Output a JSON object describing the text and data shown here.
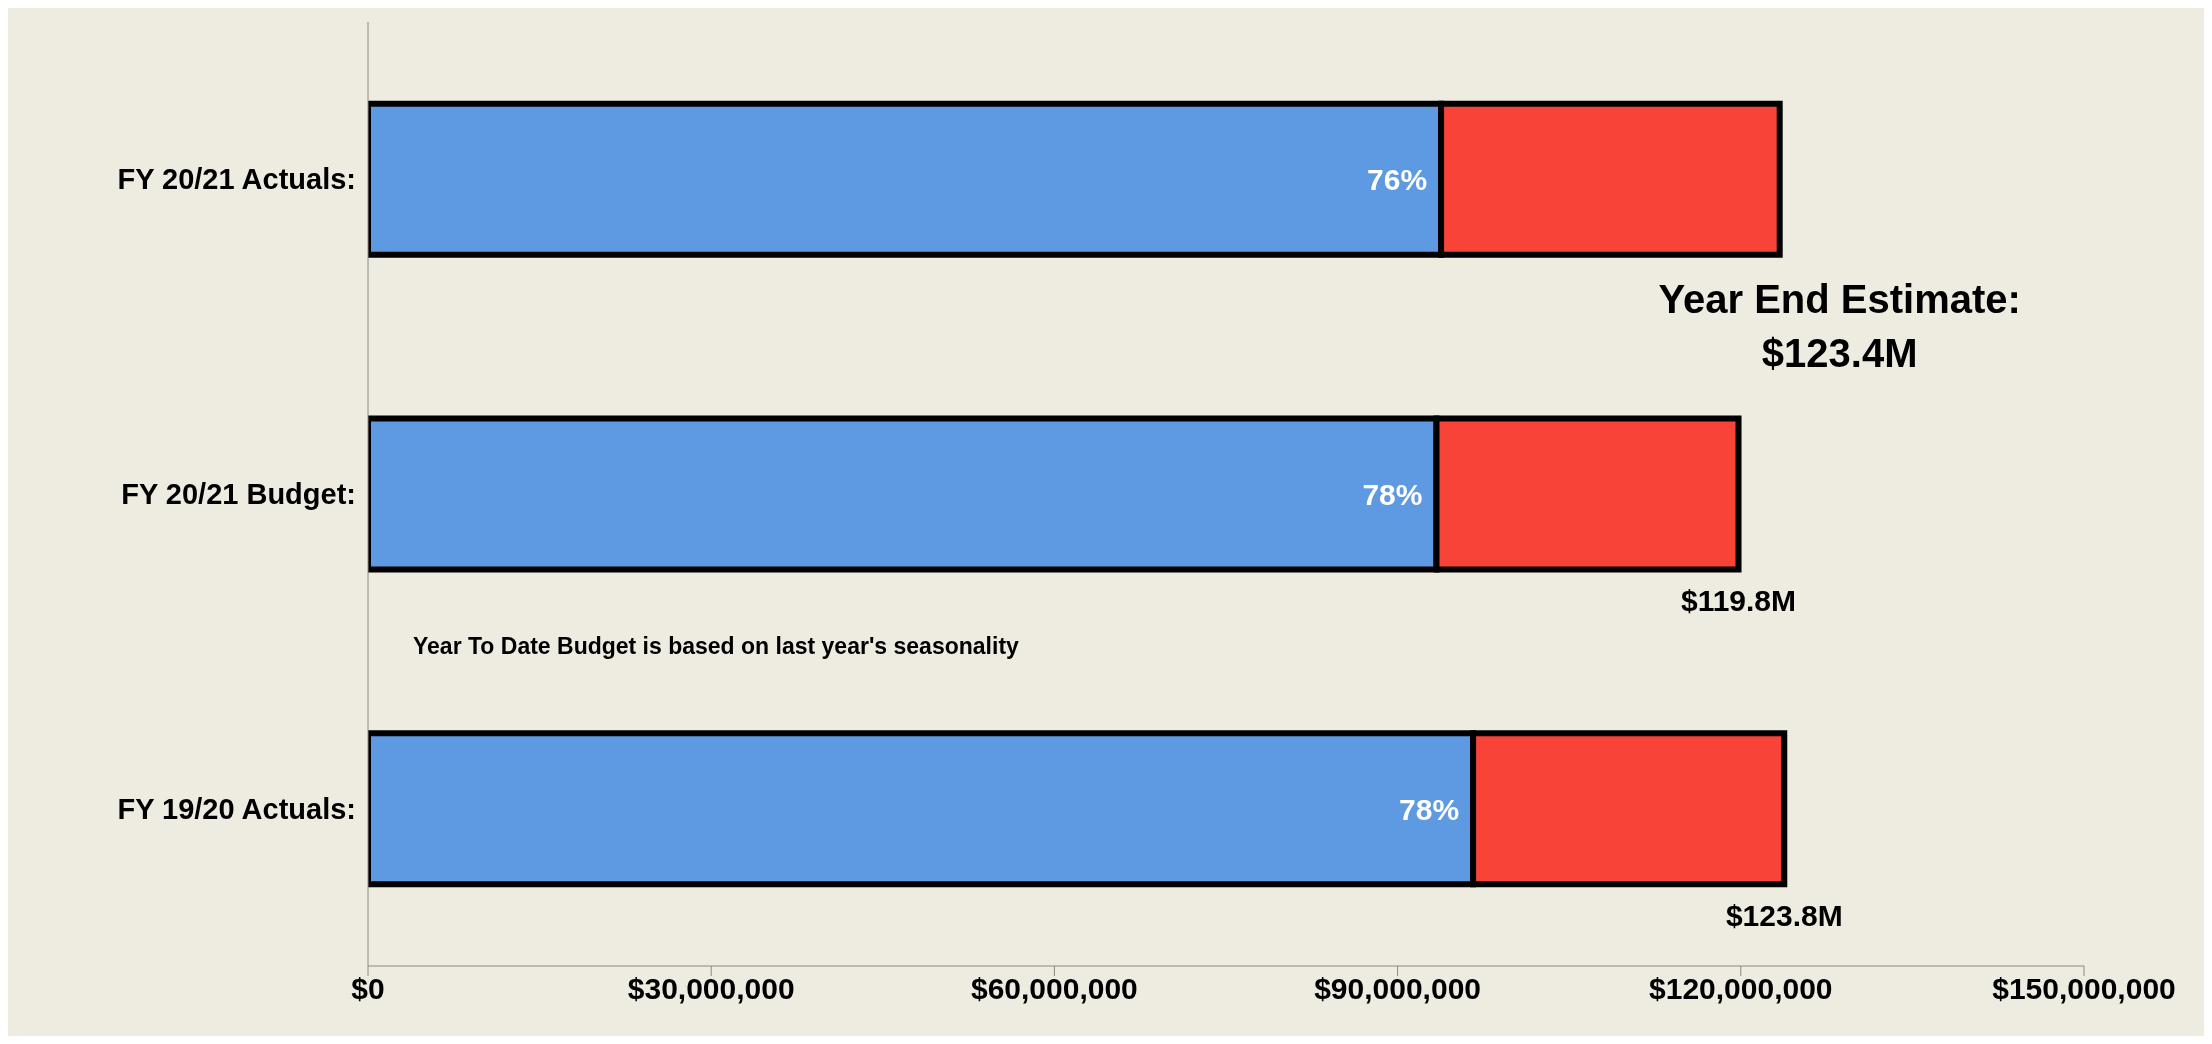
{
  "chart_data": {
    "type": "bar",
    "orientation": "horizontal",
    "stacked": true,
    "categories": [
      "FY 20/21 Actuals",
      "FY 20/21 Budget",
      "FY 19/20 Actuals"
    ],
    "series": [
      {
        "color": "#5e9ae2",
        "values": [
          93800000,
          93400000,
          96600000
        ]
      },
      {
        "color": "#f84438",
        "values": [
          29600000,
          26400000,
          27200000
        ]
      }
    ],
    "totals": [
      "$123.4M",
      "$119.8M",
      "$123.8M"
    ],
    "xlim": [
      0,
      150000000
    ],
    "xticks": [
      {
        "value": 0,
        "label": "$0"
      },
      {
        "value": 30000000,
        "label": "$30,000,000"
      },
      {
        "value": 60000000,
        "label": "$60,000,000"
      },
      {
        "value": 90000000,
        "label": "$90,000,000"
      },
      {
        "value": 120000000,
        "label": "$120,000,000"
      },
      {
        "value": 150000000,
        "label": "$150,000,000"
      }
    ],
    "annotations": [
      {
        "text": "76%",
        "x": 93800000,
        "y": "FY 20/21 Actuals"
      },
      {
        "text": "78%",
        "x": 93400000,
        "y": "FY 20/21 Budget"
      },
      {
        "text": "78%",
        "x": 96600000,
        "y": "FY 19/20 Actuals"
      },
      {
        "text": "Year End Estimate:",
        "x": 123400000,
        "y": "FY 20/21 Actuals"
      },
      "Year To Date Budget is based on last year's seasonality",
      ":",
      ":",
      ":"
    ],
    "legend": false,
    "grid": false
  }
}
